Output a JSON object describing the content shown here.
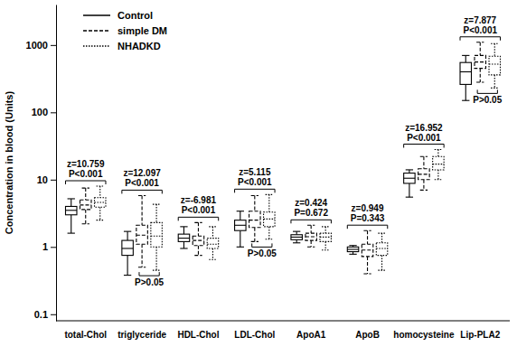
{
  "chart_data": {
    "type": "box",
    "y_label": "Concentration in blood (Units)",
    "categories": [
      "total-Chol",
      "triglyceride",
      "HDL-Chol",
      "LDL-Chol",
      "ApoA1",
      "ApoB",
      "homocysteine",
      "Lip-PLA2"
    ],
    "series": [
      {
        "name": "Control",
        "color": "#000000",
        "line_style": "solid",
        "low": [
          1.6,
          0.38,
          0.95,
          1.0,
          1.15,
          0.78,
          5.5,
          150
        ],
        "q1": [
          3.0,
          0.75,
          1.2,
          1.75,
          1.28,
          0.85,
          8.8,
          260
        ],
        "median": [
          3.5,
          0.95,
          1.35,
          2.1,
          1.4,
          0.92,
          10.5,
          400
        ],
        "q3": [
          4.0,
          1.25,
          1.55,
          2.5,
          1.52,
          1.0,
          12.5,
          550
        ],
        "high": [
          5.2,
          1.7,
          2.0,
          3.4,
          1.7,
          1.05,
          14,
          700
        ]
      },
      {
        "name": "simple DM",
        "color": "#000000",
        "line_style": "dashed",
        "low": [
          2.2,
          0.5,
          0.75,
          1.2,
          1.0,
          0.4,
          7,
          280
        ],
        "q1": [
          3.6,
          1.1,
          1.05,
          1.95,
          1.25,
          0.72,
          10,
          450
        ],
        "median": [
          4.2,
          1.5,
          1.25,
          2.5,
          1.42,
          0.9,
          12,
          560
        ],
        "q3": [
          5.0,
          2.1,
          1.45,
          3.4,
          1.6,
          1.1,
          14.5,
          700
        ],
        "high": [
          7.5,
          5.8,
          2.3,
          5.8,
          2.1,
          1.75,
          22,
          1100
        ]
      },
      {
        "name": "NHADKD",
        "color": "#000000",
        "line_style": "dotted",
        "low": [
          2.5,
          0.45,
          0.65,
          1.3,
          0.9,
          0.45,
          10,
          230
        ],
        "q1": [
          3.9,
          1.0,
          0.95,
          2.0,
          1.2,
          0.75,
          14,
          360
        ],
        "median": [
          4.6,
          1.45,
          1.1,
          2.6,
          1.4,
          0.95,
          17,
          520
        ],
        "q3": [
          5.4,
          2.3,
          1.35,
          3.3,
          1.6,
          1.15,
          22,
          680
        ],
        "high": [
          8.0,
          4.3,
          2.0,
          6.0,
          2.0,
          1.6,
          28,
          1050
        ]
      }
    ],
    "log": "y",
    "ylim": [
      0.08,
      4000
    ],
    "yticks": [
      0.1,
      1,
      10,
      100,
      1000
    ],
    "legend": "top-left",
    "annotations": [
      {
        "category": "total-Chol",
        "z": "z=10.759",
        "p": "P<0.001"
      },
      {
        "category": "triglyceride",
        "z": "z=12.097",
        "p": "P<0.001"
      },
      {
        "category": "HDL-Chol",
        "z": "z=-6.981",
        "p": "P<0.001"
      },
      {
        "category": "LDL-Chol",
        "z": "z=5.115",
        "p": "P<0.001"
      },
      {
        "category": "ApoA1",
        "z": "z=0.424",
        "p": "P=0.672"
      },
      {
        "category": "ApoB",
        "z": "z=0.949",
        "p": "P=0.343"
      },
      {
        "category": "homocysteine",
        "z": "z=16.952",
        "p": "P<0.001"
      },
      {
        "category": "Lip-PLA2",
        "z": "z=7.877",
        "p": "P<0.001"
      }
    ],
    "pairwise_annotations": [
      {
        "category": "triglyceride",
        "text": "P>0.05"
      },
      {
        "category": "LDL-Chol",
        "text": "P>0.05"
      },
      {
        "category": "Lip-PLA2",
        "text": "P>0.05"
      }
    ]
  }
}
